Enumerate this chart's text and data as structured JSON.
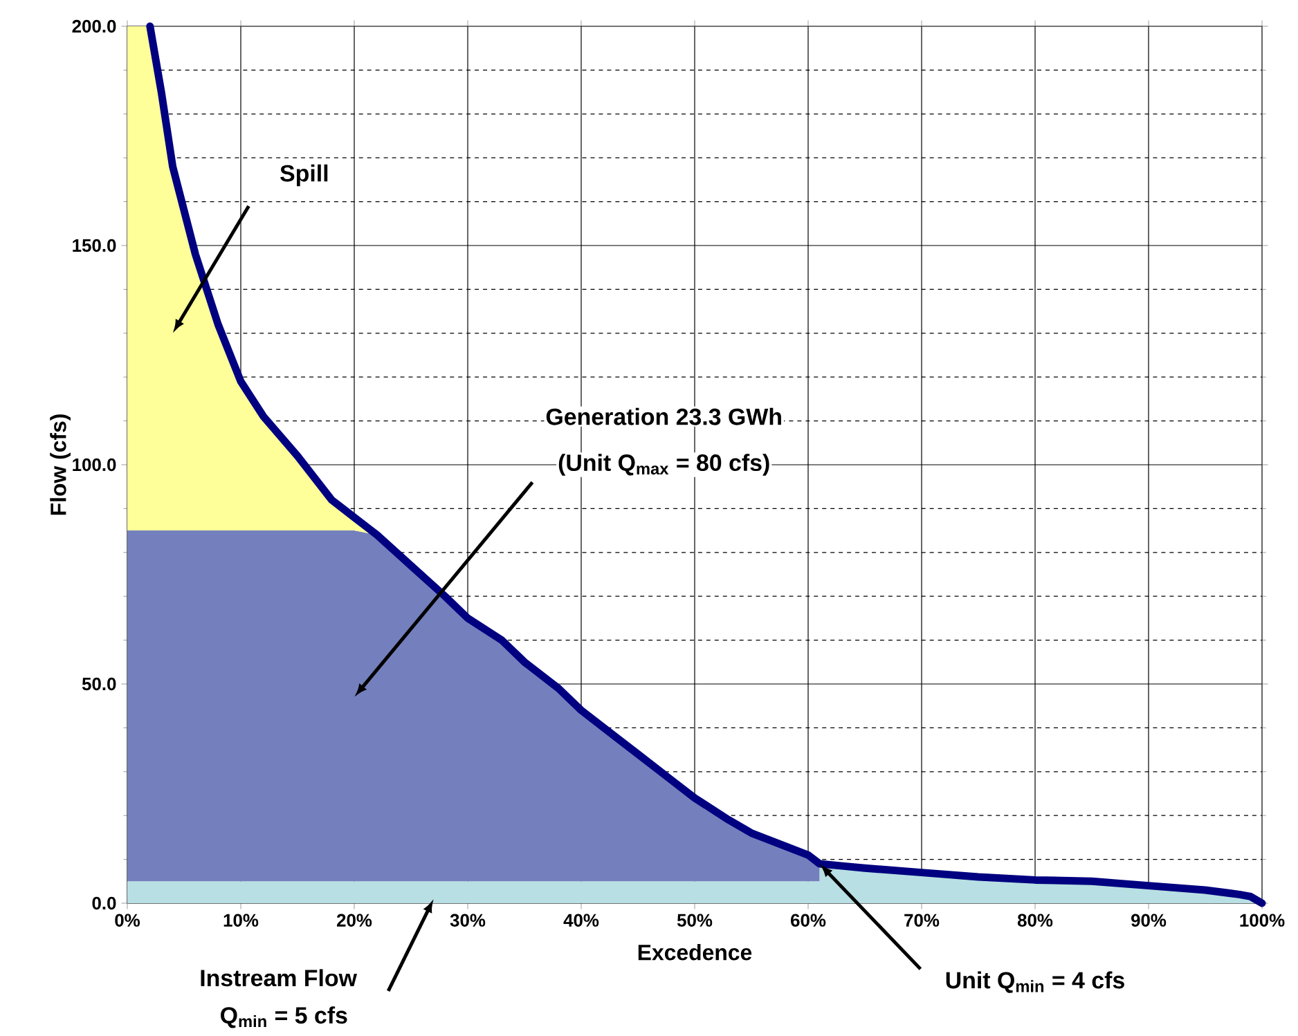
{
  "chart_data": {
    "type": "area",
    "stacked": true,
    "xlabel": "Excedence",
    "ylabel": "Flow (cfs)",
    "x": [
      0,
      2,
      3,
      4,
      5,
      6,
      8,
      10,
      12,
      15,
      18,
      20,
      22,
      25,
      28,
      30,
      33,
      35,
      38,
      40,
      43,
      45,
      48,
      50,
      53,
      55,
      58,
      60,
      61,
      61,
      63,
      65,
      70,
      75,
      80,
      85,
      90,
      95,
      98,
      99,
      100
    ],
    "series": [
      {
        "color": "#b8dfe3",
        "values": [
          5,
          5,
          5,
          5,
          5,
          5,
          5,
          5,
          5,
          5,
          5,
          5,
          5,
          5,
          5,
          5,
          5,
          5,
          5,
          5,
          5,
          5,
          5,
          5,
          5,
          5,
          5,
          5,
          5,
          9,
          8.5,
          8,
          7,
          6,
          5.3,
          5,
          4,
          3,
          2,
          1.5,
          0
        ]
      },
      {
        "color": "#7480bd",
        "x": [
          0,
          2,
          3,
          4,
          5,
          6,
          8,
          10,
          12,
          15,
          18,
          20,
          22,
          25,
          28,
          30,
          33,
          35,
          38,
          40,
          43,
          45,
          48,
          50,
          53,
          55,
          58,
          60,
          61
        ],
        "values": [
          80,
          80,
          80,
          80,
          80,
          80,
          80,
          80,
          80,
          80,
          80,
          80,
          79,
          72,
          65,
          60,
          55,
          50,
          44,
          39,
          33,
          29,
          23,
          19,
          14,
          11,
          8,
          6,
          4
        ]
      },
      {
        "color": "#ffff99",
        "x": [
          0,
          2,
          3,
          4,
          5,
          6,
          8,
          10,
          12,
          15,
          18,
          20,
          22
        ],
        "values": [
          115,
          115,
          100,
          83,
          73,
          63,
          47,
          34,
          26,
          17,
          7,
          3,
          0
        ]
      },
      {
        "type": "line",
        "color": "#000080",
        "x": [
          2,
          3,
          4,
          5,
          6,
          8,
          10,
          12,
          15,
          18,
          20,
          22,
          25,
          28,
          30,
          33,
          35,
          38,
          40,
          43,
          45,
          48,
          50,
          53,
          55,
          58,
          60,
          61,
          61,
          63,
          65,
          70,
          75,
          80,
          85,
          90,
          95,
          98,
          99,
          100
        ],
        "values": [
          200,
          185,
          168,
          158,
          148,
          132,
          119,
          111,
          102,
          92,
          88,
          84,
          77,
          70,
          65,
          60,
          55,
          49,
          44,
          38,
          34,
          28,
          24,
          19,
          16,
          13,
          11,
          9,
          9,
          8.5,
          8,
          7,
          6,
          5.3,
          5,
          4,
          3,
          2,
          1.5,
          0
        ]
      }
    ],
    "xlim": [
      0,
      100
    ],
    "xticks": [
      {
        "value": 0,
        "label": "0%"
      },
      {
        "value": 10,
        "label": "10%"
      },
      {
        "value": 20,
        "label": "20%"
      },
      {
        "value": 30,
        "label": "30%"
      },
      {
        "value": 40,
        "label": "40%"
      },
      {
        "value": 50,
        "label": "50%"
      },
      {
        "value": 60,
        "label": "60%"
      },
      {
        "value": 70,
        "label": "70%"
      },
      {
        "value": 80,
        "label": "80%"
      },
      {
        "value": 90,
        "label": "90%"
      },
      {
        "value": 100,
        "label": "100%"
      }
    ],
    "ylim": [
      0,
      200
    ],
    "yticks": [
      {
        "value": 0,
        "label": "0.0"
      },
      {
        "value": 50,
        "label": "50.0"
      },
      {
        "value": 100,
        "label": "100.0"
      },
      {
        "value": 150,
        "label": "150.0"
      },
      {
        "value": 200,
        "label": "200.0"
      }
    ],
    "grid": true,
    "annotations": [
      "Spill",
      "Generation 23.3 GWh",
      "(Unit Q$_{max}$ = 80 cfs)",
      "Instream Flow",
      "Q$_{min}$ = 5 cfs",
      {
        "text": "Unit Q$_{min}$ = 4 cfs",
        "x": 61,
        "y": 9
      }
    ]
  }
}
